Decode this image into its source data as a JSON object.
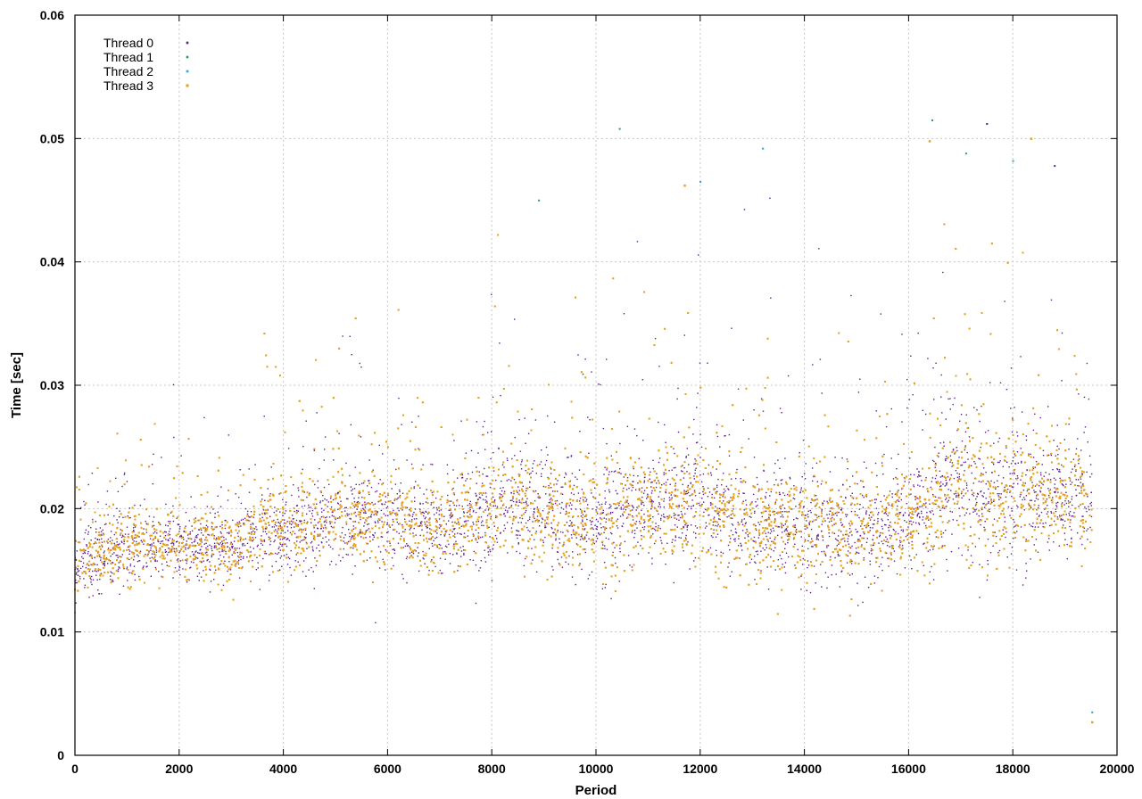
{
  "chart_data": {
    "type": "scatter",
    "title": "",
    "xlabel": "Period",
    "ylabel": "Time [sec]",
    "xlim": [
      0,
      20000
    ],
    "ylim": [
      0,
      0.06
    ],
    "x_ticks": [
      "0",
      "2000",
      "4000",
      "6000",
      "8000",
      "10000",
      "12000",
      "14000",
      "16000",
      "18000",
      "20000"
    ],
    "y_ticks": [
      "0",
      "0.01",
      "0.02",
      "0.03",
      "0.04",
      "0.05",
      "0.06"
    ],
    "grid": true,
    "legend_position": "top-left",
    "x_max_data": 19520,
    "trend": [
      [
        0,
        0.015
      ],
      [
        400,
        0.016
      ],
      [
        1000,
        0.0168
      ],
      [
        2000,
        0.017
      ],
      [
        3000,
        0.0168
      ],
      [
        3500,
        0.018
      ],
      [
        4000,
        0.018
      ],
      [
        5000,
        0.019
      ],
      [
        6000,
        0.019
      ],
      [
        7000,
        0.018
      ],
      [
        7600,
        0.019
      ],
      [
        8000,
        0.02
      ],
      [
        9000,
        0.0195
      ],
      [
        10000,
        0.019
      ],
      [
        11000,
        0.02
      ],
      [
        12000,
        0.0205
      ],
      [
        13000,
        0.019
      ],
      [
        14000,
        0.0185
      ],
      [
        15000,
        0.018
      ],
      [
        16000,
        0.019
      ],
      [
        16400,
        0.02
      ],
      [
        17000,
        0.022
      ],
      [
        18000,
        0.021
      ],
      [
        19000,
        0.021
      ],
      [
        19520,
        0.02
      ]
    ],
    "series": [
      {
        "name": "Thread 0",
        "color": "#5b1d8c",
        "marker_size": 1.4,
        "point_count": 4200,
        "outliers": [
          [
            17500,
            0.0512
          ],
          [
            18800,
            0.0478
          ]
        ]
      },
      {
        "name": "Thread 1",
        "color": "#1f9e5b",
        "marker_size": 1.4,
        "point_count": 4200,
        "outliers": [
          [
            10450,
            0.0508
          ],
          [
            16450,
            0.0515
          ],
          [
            17100,
            0.0488
          ],
          [
            8900,
            0.045
          ]
        ]
      },
      {
        "name": "Thread 2",
        "color": "#36a7d6",
        "marker_size": 1.5,
        "point_count": 5200,
        "outliers": [
          [
            12000,
            0.0465
          ],
          [
            13200,
            0.0492
          ],
          [
            18000,
            0.0482
          ],
          [
            19520,
            0.0035
          ]
        ]
      },
      {
        "name": "Thread 3",
        "color": "#e8a21c",
        "marker_size": 1.9,
        "point_count": 6400,
        "outliers": [
          [
            16400,
            0.0498
          ],
          [
            18350,
            0.05
          ],
          [
            11700,
            0.0462
          ],
          [
            19520,
            0.0027
          ]
        ]
      }
    ]
  }
}
